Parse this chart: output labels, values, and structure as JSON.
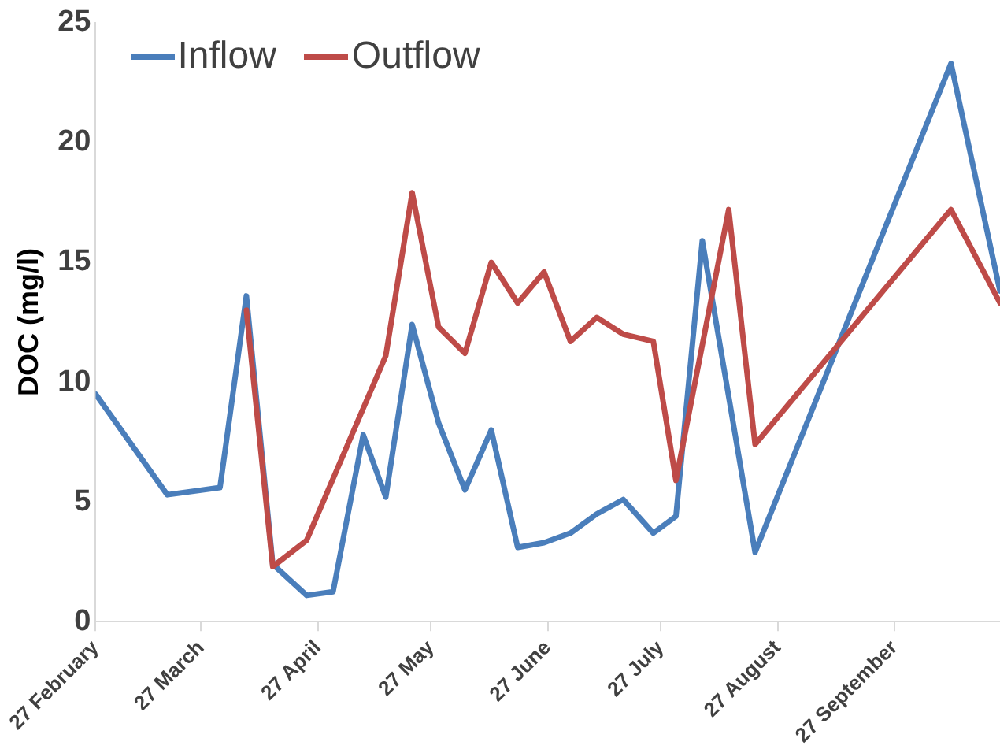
{
  "chart_data": {
    "type": "line",
    "ylabel": "DOC (mg/l)",
    "xlim": [
      "--02-27",
      "--10-25"
    ],
    "xticks": [
      {
        "value": "--02-27",
        "label": "27 February"
      },
      {
        "value": "--03-27",
        "label": "27 March"
      },
      {
        "value": "--04-27",
        "label": "27 April"
      },
      {
        "value": "--05-27",
        "label": "27 May"
      },
      {
        "value": "--06-27",
        "label": "27 June"
      },
      {
        "value": "--07-27",
        "label": "27 July"
      },
      {
        "value": "--08-27",
        "label": "27 August"
      },
      {
        "value": "--09-27",
        "label": "27 September"
      }
    ],
    "ylim": [
      0,
      25
    ],
    "yticks": [
      0,
      5,
      10,
      15,
      20,
      25
    ],
    "grid": false,
    "legend": "top left",
    "marker": "none",
    "line_style": "solid",
    "series": [
      {
        "name": "Inflow",
        "color": "#4a7ebb",
        "x": [
          "--02-27",
          "--03-18",
          "--04-01",
          "--04-08",
          "--04-15",
          "--04-24",
          "--05-01",
          "--05-09",
          "--05-15",
          "--05-22",
          "--05-29",
          "--06-05",
          "--06-12",
          "--06-19",
          "--06-26",
          "--07-03",
          "--07-10",
          "--07-17",
          "--07-25",
          "--07-31",
          "--08-07",
          "--08-21",
          "--10-12",
          "--10-25"
        ],
        "values": [
          9.5,
          5.3,
          5.6,
          13.6,
          2.4,
          1.1,
          1.25,
          7.8,
          5.2,
          12.4,
          8.3,
          5.5,
          8.0,
          3.1,
          3.3,
          3.7,
          4.5,
          5.1,
          3.7,
          4.4,
          15.9,
          2.9,
          23.3,
          13.8
        ]
      },
      {
        "name": "Outflow",
        "color": "#be4b48",
        "x": [
          "--04-08",
          "--04-15",
          "--04-24",
          "--05-15",
          "--05-22",
          "--05-29",
          "--06-05",
          "--06-12",
          "--06-19",
          "--06-26",
          "--07-03",
          "--07-10",
          "--07-17",
          "--07-25",
          "--07-31",
          "--08-14",
          "--08-21",
          "--10-12",
          "--10-25"
        ],
        "values": [
          13.0,
          2.3,
          3.4,
          11.1,
          17.9,
          12.3,
          11.2,
          15.0,
          13.3,
          14.6,
          11.7,
          12.7,
          12.0,
          11.7,
          5.9,
          17.2,
          7.4,
          17.2,
          13.3
        ]
      }
    ]
  }
}
